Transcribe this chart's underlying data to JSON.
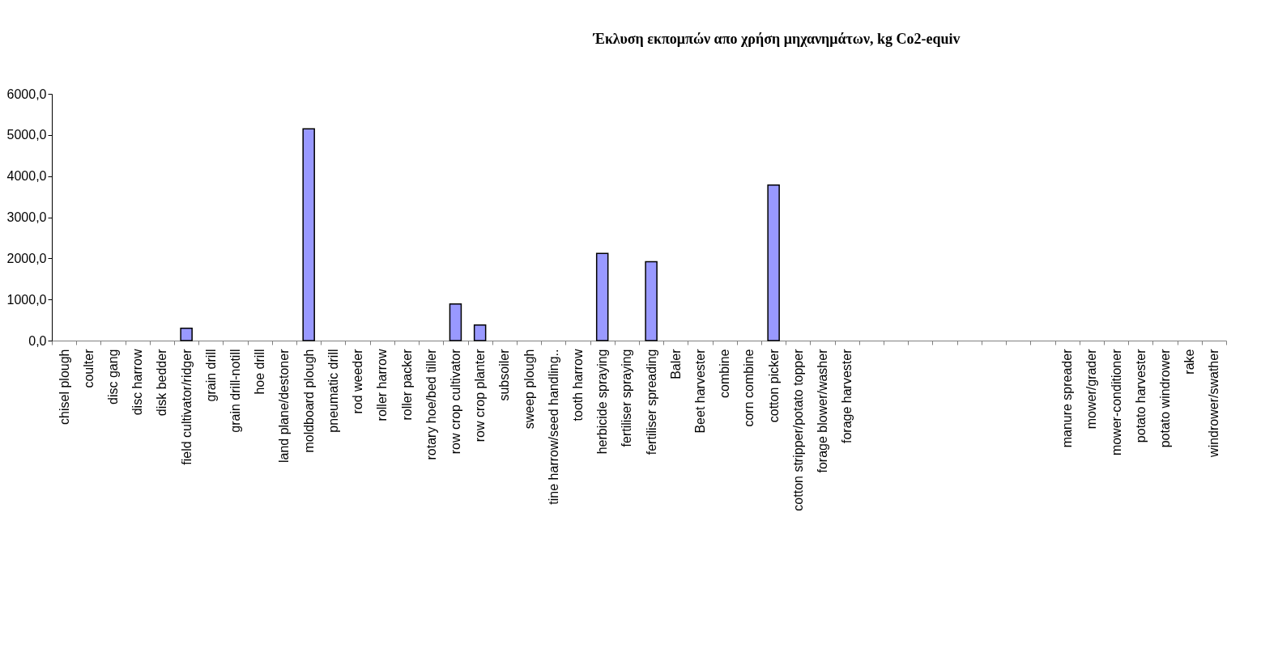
{
  "chart_data": {
    "type": "bar",
    "title": "Έκλυση εκπομπών απο χρήση μηχανημάτων, kg Co2-equiv",
    "categories": [
      "chisel plough",
      "coulter",
      "disc gang",
      "disc harrow",
      "disk bedder",
      "field cultivator/ridger",
      "grain drill",
      "grain drill-notill",
      "hoe drill",
      "land plane/destoner",
      "moldboard plough",
      "pneumatic drill",
      "rod weeder",
      "roller harrow",
      "roller packer",
      "rotary hoe/bed tiller",
      "row crop cultivator",
      "row crop planter",
      "subsoiler",
      "sweep plough",
      "tine harrow/seed handling..",
      "tooth harrow",
      "herbicide spraying",
      "fertiliser spraying",
      "fertiliser spreading",
      "Baler",
      "Beet harvester",
      "combine",
      "corn combine",
      "cotton picker",
      "cotton stripper/potato topper",
      "forage blower/washer",
      "forage harvester",
      null,
      null,
      null,
      null,
      null,
      null,
      null,
      null,
      "manure spreader",
      "mower/grader",
      "mower-conditioner",
      "potato harvester",
      "potato windrower",
      "rake",
      "windrower/swather"
    ],
    "values": [
      null,
      null,
      null,
      null,
      null,
      300,
      null,
      null,
      null,
      null,
      5150,
      null,
      null,
      null,
      null,
      null,
      890,
      380,
      null,
      null,
      null,
      null,
      2120,
      null,
      1920,
      null,
      null,
      null,
      null,
      3780,
      null,
      null,
      null,
      null,
      null,
      null,
      null,
      null,
      null,
      null,
      null,
      null,
      null,
      null,
      null,
      null,
      null,
      null
    ],
    "color": "#9999ff",
    "ylim": [
      0,
      6000
    ],
    "yticks": [
      {
        "value": 0,
        "label": "0,0"
      },
      {
        "value": 1000,
        "label": "1000,0"
      },
      {
        "value": 2000,
        "label": "2000,0"
      },
      {
        "value": 3000,
        "label": "3000,0"
      },
      {
        "value": 4000,
        "label": "4000,0"
      },
      {
        "value": 5000,
        "label": "5000,0"
      },
      {
        "value": 6000,
        "label": "6000,0"
      }
    ],
    "grid": false
  }
}
